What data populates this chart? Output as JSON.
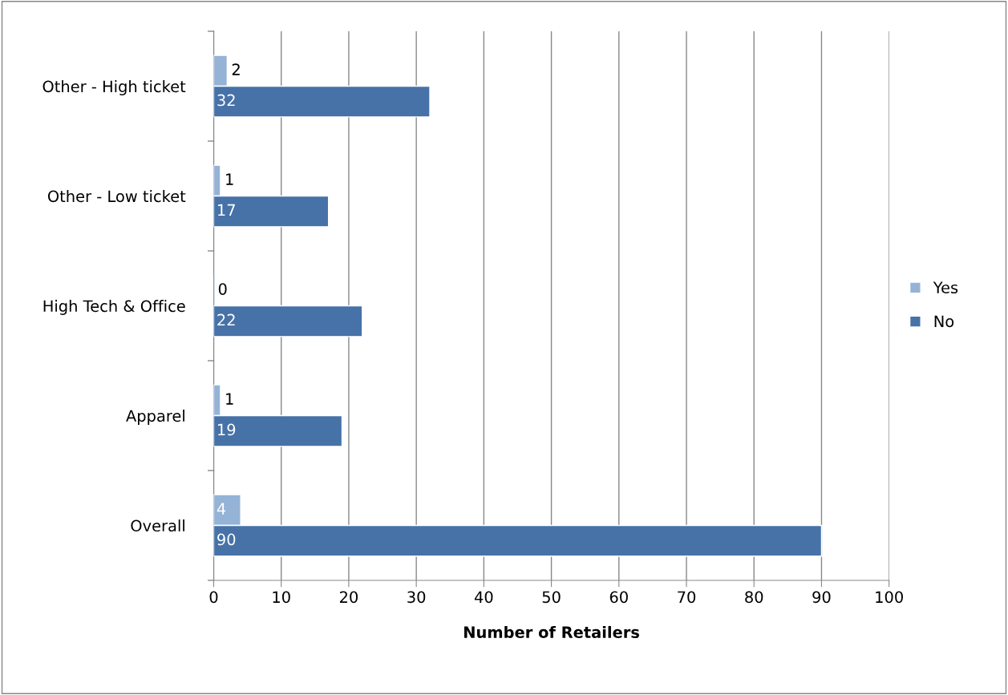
{
  "chart_data": {
    "type": "bar",
    "orientation": "horizontal",
    "xlabel": "Number of Retailers",
    "categories": [
      "Other - High ticket",
      "Other - Low ticket",
      "High Tech & Office",
      "Apparel",
      "Overall"
    ],
    "series": [
      {
        "name": "Yes",
        "color": "#95b3d7",
        "values": [
          2,
          1,
          0,
          1,
          4
        ]
      },
      {
        "name": "No",
        "color": "#4672a8",
        "values": [
          32,
          17,
          22,
          19,
          90
        ]
      }
    ],
    "xlim": [
      0,
      100
    ],
    "xticks": [
      0,
      10,
      20,
      30,
      40,
      50,
      60,
      70,
      80,
      90,
      100
    ],
    "grid": "x",
    "legend": "right",
    "data_labels": true
  }
}
